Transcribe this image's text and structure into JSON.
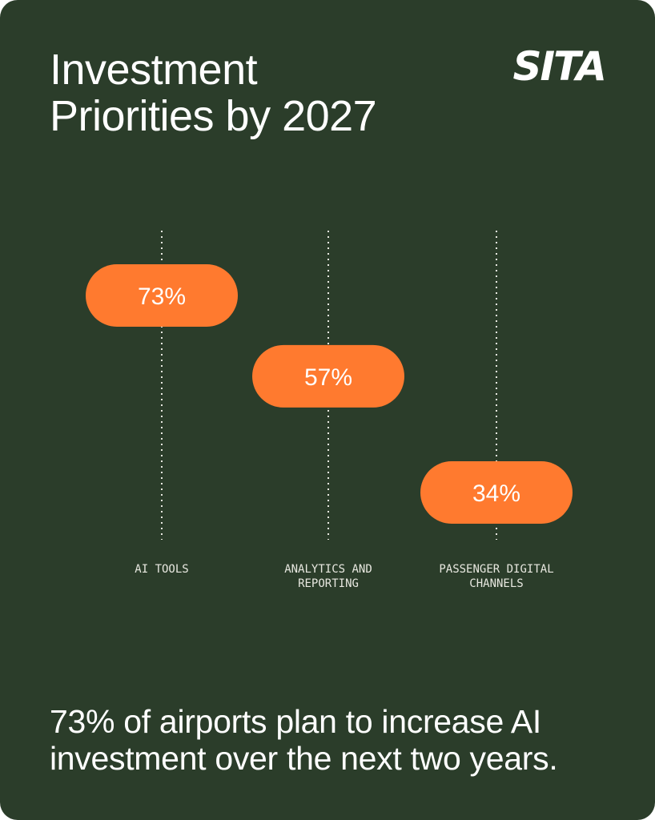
{
  "header": {
    "title_line1": "Investment",
    "title_line2": "Priorities by 2027",
    "brand": "SITA"
  },
  "chart_data": {
    "type": "bar",
    "categories": [
      [
        "AI TOOLS"
      ],
      [
        "ANALYTICS AND",
        "REPORTING"
      ],
      [
        "PASSENGER DIGITAL",
        "CHANNELS"
      ]
    ],
    "values": [
      73,
      57,
      34
    ],
    "labels": [
      "73%",
      "57%",
      "34%"
    ],
    "unit": "%",
    "ylim": [
      0,
      100
    ],
    "title": "",
    "xlabel": "",
    "ylabel": "",
    "grid": false,
    "colors": {
      "pill": "#ff7a2f",
      "pill_text": "#ffffff",
      "guide": "#e8e8e0",
      "category_text": "#e8e8e0"
    }
  },
  "footer": {
    "caption": "73% of airports plan to increase AI investment over the next two years."
  },
  "colors": {
    "background": "#2b3d2a",
    "text": "#ffffff"
  }
}
